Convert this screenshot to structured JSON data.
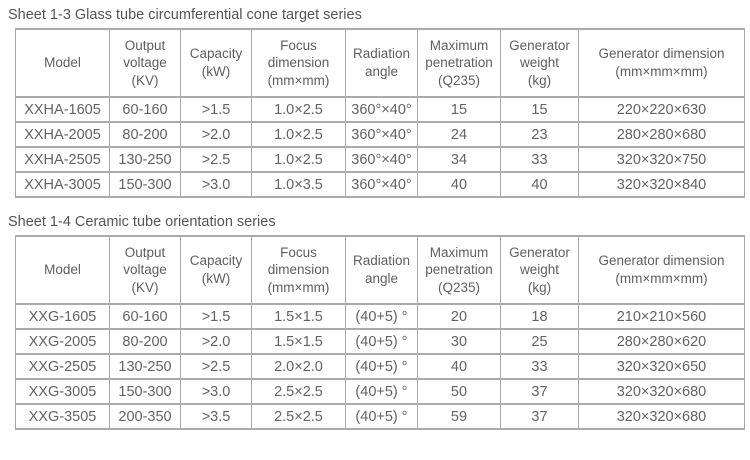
{
  "page": {
    "background_color": "#ffffff",
    "text_color": "#5f5f5f",
    "border_color": "#a8a8a8"
  },
  "tables": [
    {
      "title": "Sheet 1-3 Glass tube circumferential cone target series",
      "headers": [
        "Model",
        "Output\nvoltage\n(KV)",
        "Capacity\n(kW)",
        "Focus\ndimension\n(mm×mm)",
        "Radiation\nangle",
        "Maximum\npenetration\n(Q235)",
        "Generator\nweight\n(kg)",
        "Generator dimension\n(mm×mm×mm)"
      ],
      "rows": [
        [
          "XXHA-1605",
          "60-160",
          ">1.5",
          "1.0×2.5",
          "360°×40°",
          "15",
          "15",
          "220×220×630"
        ],
        [
          "XXHA-2005",
          "80-200",
          ">2.0",
          "1.0×2.5",
          "360°×40°",
          "24",
          "23",
          "280×280×680"
        ],
        [
          "XXHA-2505",
          "130-250",
          ">2.5",
          "1.0×2.5",
          "360°×40°",
          "34",
          "33",
          "320×320×750"
        ],
        [
          "XXHA-3005",
          "150-300",
          ">3.0",
          "1.0×3.5",
          "360°×40°",
          "40",
          "40",
          "320×320×840"
        ]
      ]
    },
    {
      "title": "Sheet 1-4 Ceramic tube orientation series",
      "headers": [
        "Model",
        "Output\nvoltage\n(KV)",
        "Capacity\n(kW)",
        "Focus\ndimension\n(mm×mm)",
        "Radiation\nangle",
        "Maximum\npenetration\n(Q235)",
        "Generator\nweight\n(kg)",
        "Generator dimension\n(mm×mm×mm)"
      ],
      "rows": [
        [
          "XXG-1605",
          "60-160",
          ">1.5",
          "1.5×1.5",
          "(40+5) °",
          "20",
          "18",
          "210×210×560"
        ],
        [
          "XXG-2005",
          "80-200",
          ">2.0",
          "1.5×1.5",
          "(40+5) °",
          "30",
          "25",
          "280×280×620"
        ],
        [
          "XXG-2505",
          "130-250",
          ">2.5",
          "2.0×2.0",
          "(40+5) °",
          "40",
          "33",
          "320×320×650"
        ],
        [
          "XXG-3005",
          "150-300",
          ">3.0",
          "2.5×2.5",
          "(40+5) °",
          "50",
          "37",
          "320×320×680"
        ],
        [
          "XXG-3505",
          "200-350",
          ">3.5",
          "2.5×2.5",
          "(40+5) °",
          "59",
          "37",
          "320×320×680"
        ]
      ]
    }
  ]
}
